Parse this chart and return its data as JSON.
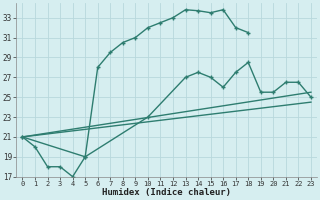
{
  "xlabel": "Humidex (Indice chaleur)",
  "bg_color": "#d6eef0",
  "grid_color": "#b8d8dc",
  "line_color": "#2e7d70",
  "xlim": [
    -0.5,
    23.5
  ],
  "ylim": [
    17,
    34.5
  ],
  "yticks": [
    17,
    19,
    21,
    23,
    25,
    27,
    29,
    31,
    33
  ],
  "xticks": [
    0,
    1,
    2,
    3,
    4,
    5,
    6,
    7,
    8,
    9,
    10,
    11,
    12,
    13,
    14,
    15,
    16,
    17,
    18,
    19,
    20,
    21,
    22,
    23
  ],
  "line1_x": [
    0,
    1,
    2,
    3,
    4,
    5,
    6,
    7,
    8,
    9,
    10,
    11,
    12,
    13,
    14,
    15,
    16,
    17,
    18
  ],
  "line1_y": [
    21,
    20,
    18,
    18,
    17,
    19,
    28,
    29.5,
    30.5,
    31,
    32,
    32.5,
    33,
    33.8,
    33.7,
    33.5,
    33.8,
    32,
    31.5
  ],
  "line2_x": [
    0,
    5,
    10,
    13,
    14,
    15,
    16,
    17,
    18,
    19,
    20,
    21,
    22,
    23
  ],
  "line2_y": [
    21,
    19,
    23,
    27,
    27.5,
    27,
    26,
    27.5,
    28.5,
    25.5,
    25.5,
    26.5,
    26.5,
    25
  ],
  "line3_x": [
    0,
    23
  ],
  "line3_y": [
    21,
    25.5
  ],
  "line4_x": [
    0,
    23
  ],
  "line4_y": [
    21,
    24.5
  ]
}
